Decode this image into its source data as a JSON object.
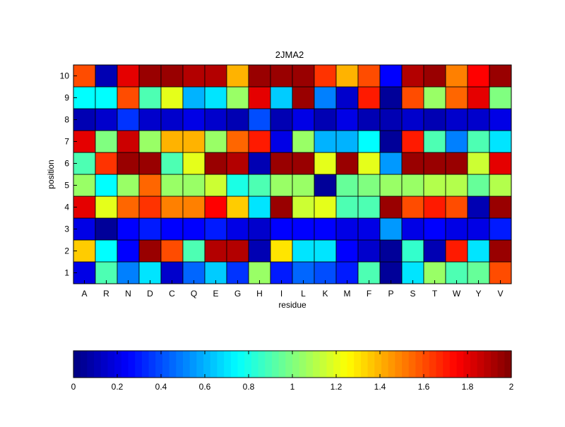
{
  "chart_data": {
    "type": "heatmap",
    "title": "2JMA2",
    "xlabel": "residue",
    "ylabel": "position",
    "x_categories": [
      "A",
      "R",
      "N",
      "D",
      "C",
      "Q",
      "E",
      "G",
      "H",
      "I",
      "L",
      "K",
      "M",
      "F",
      "P",
      "S",
      "T",
      "W",
      "Y",
      "V"
    ],
    "y_categories": [
      "1",
      "2",
      "3",
      "4",
      "5",
      "6",
      "7",
      "8",
      "9",
      "10"
    ],
    "values": [
      [
        0.2,
        0.9,
        0.5,
        0.7,
        0.15,
        0.45,
        0.65,
        0.35,
        1.05,
        0.3,
        0.45,
        0.4,
        0.3,
        0.9,
        0.05,
        0.7,
        1.05,
        0.9,
        0.95,
        1.6
      ],
      [
        1.35,
        0.75,
        0.25,
        1.95,
        1.6,
        0.9,
        1.9,
        1.9,
        0.1,
        1.3,
        0.7,
        0.7,
        0.25,
        0.15,
        0.05,
        0.85,
        0.1,
        1.7,
        0.7,
        1.95
      ],
      [
        0.2,
        0.05,
        0.25,
        0.3,
        0.25,
        0.25,
        0.3,
        0.2,
        0.15,
        0.25,
        0.25,
        0.25,
        0.2,
        0.2,
        0.55,
        0.2,
        0.25,
        0.2,
        0.2,
        0.3
      ],
      [
        1.8,
        1.2,
        1.55,
        1.65,
        1.5,
        1.5,
        1.75,
        1.35,
        0.7,
        1.95,
        1.15,
        1.2,
        0.9,
        0.9,
        1.95,
        1.6,
        1.7,
        1.6,
        0.1,
        1.95
      ],
      [
        1.05,
        0.75,
        1.05,
        1.55,
        1.05,
        1.05,
        1.15,
        0.8,
        0.9,
        1.05,
        1.05,
        0.05,
        0.95,
        1.0,
        1.05,
        1.05,
        1.1,
        1.1,
        0.95,
        1.1
      ],
      [
        0.9,
        1.65,
        1.95,
        1.95,
        0.9,
        1.2,
        1.95,
        1.9,
        0.1,
        1.95,
        1.95,
        1.2,
        1.95,
        1.2,
        0.55,
        1.95,
        1.95,
        1.95,
        1.15,
        1.8
      ],
      [
        1.8,
        1.0,
        1.85,
        1.05,
        1.4,
        1.4,
        1.05,
        1.55,
        1.7,
        0.2,
        1.05,
        0.6,
        0.6,
        0.75,
        0.05,
        1.7,
        0.9,
        0.5,
        0.9,
        0.7
      ],
      [
        0.1,
        0.15,
        0.35,
        0.15,
        0.15,
        0.2,
        0.15,
        0.1,
        0.4,
        0.1,
        0.2,
        0.1,
        0.2,
        0.1,
        0.1,
        0.15,
        0.1,
        0.15,
        0.15,
        0.2
      ],
      [
        0.75,
        0.75,
        1.6,
        0.9,
        1.2,
        0.6,
        0.7,
        1.05,
        1.8,
        0.65,
        1.95,
        0.5,
        0.15,
        1.7,
        0.05,
        1.6,
        1.05,
        1.55,
        1.8,
        1.0
      ],
      [
        1.6,
        0.1,
        1.8,
        1.95,
        1.95,
        1.9,
        1.9,
        1.4,
        1.95,
        1.95,
        1.95,
        1.65,
        1.4,
        1.6,
        0.25,
        1.9,
        1.95,
        1.5,
        1.75,
        1.95
      ]
    ],
    "colorbar": {
      "range": [
        0,
        2
      ],
      "tick_labels": [
        "0",
        "0.2",
        "0.4",
        "0.6",
        "0.8",
        "1",
        "1.2",
        "1.4",
        "1.6",
        "1.8",
        "2"
      ]
    },
    "colormap": "jet"
  }
}
